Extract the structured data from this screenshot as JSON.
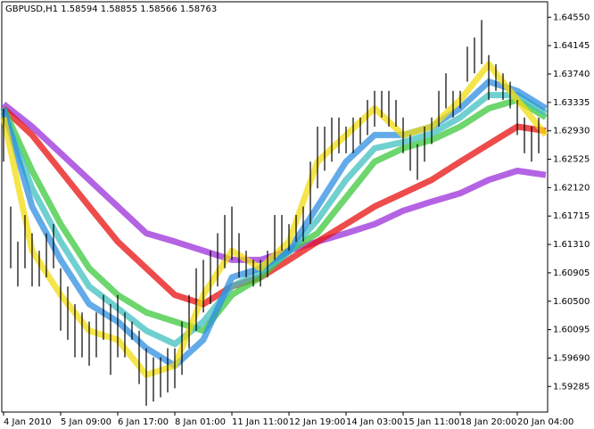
{
  "chart_data": {
    "type": "ohlc",
    "title": "GBPUSD,H1  1.58594 1.58855 1.58566 1.58763",
    "x_labels": [
      "4 Jan 2010",
      "5 Jan 09:00",
      "6 Jan 17:00",
      "8 Jan 01:00",
      "11 Jan 11:00",
      "12 Jan 19:00",
      "14 Jan 03:00",
      "15 Jan 11:00",
      "18 Jan 20:00",
      "20 Jan 04:00"
    ],
    "ylim": [
      1.5892,
      1.6477
    ],
    "yticks": [
      {
        "value": 1.6455,
        "label": "1.64550"
      },
      {
        "value": 1.64145,
        "label": "1.64145"
      },
      {
        "value": 1.6374,
        "label": "1.63740"
      },
      {
        "value": 1.63335,
        "label": "1.63335"
      },
      {
        "value": 1.6293,
        "label": "1.62930"
      },
      {
        "value": 1.62525,
        "label": "1.62525"
      },
      {
        "value": 1.6212,
        "label": "1.62120"
      },
      {
        "value": 1.61715,
        "label": "1.61715"
      },
      {
        "value": 1.6131,
        "label": "1.61310"
      },
      {
        "value": 1.60905,
        "label": "1.60905"
      },
      {
        "value": 1.605,
        "label": "1.60500"
      },
      {
        "value": 1.60095,
        "label": "1.60095"
      },
      {
        "value": 1.5969,
        "label": "1.59690"
      },
      {
        "value": 1.59285,
        "label": "1.59285"
      }
    ],
    "bar_color": "#000000",
    "high": [
      1.6325,
      1.6185,
      1.6135,
      1.6173,
      1.6147,
      1.6122,
      1.6147,
      1.616,
      1.6097,
      1.6071,
      1.6046,
      1.6034,
      1.6021,
      1.6034,
      1.6059,
      1.6046,
      1.6059,
      1.6034,
      1.6021,
      1.6008,
      1.5983,
      1.597,
      1.597,
      1.5983,
      1.5983,
      1.6021,
      1.6059,
      1.6097,
      1.6109,
      1.6122,
      1.6147,
      1.6173,
      1.6185,
      1.6147,
      1.6122,
      1.6109,
      1.6109,
      1.6122,
      1.6173,
      1.6173,
      1.616,
      1.6173,
      1.6185,
      1.6249,
      1.6299,
      1.6299,
      1.6312,
      1.6312,
      1.6299,
      1.6312,
      1.6312,
      1.6337,
      1.635,
      1.635,
      1.635,
      1.6337,
      1.6312,
      1.6287,
      1.6274,
      1.6299,
      1.6312,
      1.635,
      1.6375,
      1.635,
      1.635,
      1.6413,
      1.6426,
      1.6451,
      1.6401,
      1.6388,
      1.6375,
      1.6363,
      1.6337,
      1.6312,
      1.6299,
      1.6312
    ],
    "low": [
      1.6249,
      1.6097,
      1.6071,
      1.6097,
      1.6071,
      1.6071,
      1.6084,
      1.6097,
      1.6008,
      1.5995,
      1.597,
      1.597,
      1.5958,
      1.597,
      1.5995,
      1.5945,
      1.597,
      1.597,
      1.5995,
      1.5932,
      1.5901,
      1.5907,
      1.5913,
      1.592,
      1.5926,
      1.5945,
      1.5983,
      1.6008,
      1.6034,
      1.6046,
      1.6071,
      1.6097,
      1.6109,
      1.6084,
      1.6084,
      1.6071,
      1.6071,
      1.6084,
      1.6109,
      1.6122,
      1.6122,
      1.6135,
      1.6135,
      1.616,
      1.6211,
      1.6236,
      1.6249,
      1.6261,
      1.6261,
      1.6261,
      1.6274,
      1.6287,
      1.6299,
      1.6312,
      1.6299,
      1.6299,
      1.6261,
      1.6236,
      1.6223,
      1.6249,
      1.6274,
      1.6299,
      1.6325,
      1.6312,
      1.6325,
      1.6363,
      1.6375,
      1.6388,
      1.6337,
      1.635,
      1.6337,
      1.6325,
      1.6287,
      1.6261,
      1.6249,
      1.6261
    ],
    "lines": [
      {
        "color": "#9b30d9",
        "values": [
          1.6331,
          1.6299,
          1.6261,
          1.6223,
          1.6185,
          1.6147,
          1.6135,
          1.6122,
          1.6109,
          1.6109,
          1.6122,
          1.6135,
          1.6147,
          1.616,
          1.6179,
          1.6192,
          1.6204,
          1.6223,
          1.6236,
          1.623
        ]
      },
      {
        "color": "#e81010",
        "values": [
          1.6325,
          1.6287,
          1.6236,
          1.6185,
          1.6135,
          1.6097,
          1.6059,
          1.6046,
          1.6071,
          1.6084,
          1.6109,
          1.6135,
          1.616,
          1.6185,
          1.6204,
          1.6223,
          1.6249,
          1.6274,
          1.6299,
          1.6293
        ]
      },
      {
        "color": "#3cc83c",
        "values": [
          1.6325,
          1.6236,
          1.616,
          1.6097,
          1.6059,
          1.6034,
          1.6021,
          1.6008,
          1.6059,
          1.6084,
          1.6122,
          1.6147,
          1.6198,
          1.6249,
          1.6268,
          1.628,
          1.6299,
          1.6325,
          1.6337,
          1.6312
        ]
      },
      {
        "color": "#40c0c0",
        "values": [
          1.6318,
          1.6211,
          1.6135,
          1.6071,
          1.604,
          1.6008,
          1.5989,
          1.6021,
          1.6071,
          1.6091,
          1.612,
          1.6166,
          1.6223,
          1.6268,
          1.6277,
          1.6289,
          1.6312,
          1.6344,
          1.6344,
          1.6318
        ]
      },
      {
        "color": "#2f8fe0",
        "values": [
          1.6325,
          1.6185,
          1.6109,
          1.6046,
          1.6021,
          1.5983,
          1.5958,
          1.5995,
          1.6084,
          1.6097,
          1.6122,
          1.6185,
          1.6249,
          1.6287,
          1.6287,
          1.6299,
          1.6325,
          1.6363,
          1.635,
          1.6325
        ]
      },
      {
        "color": "#f2dc10",
        "values": [
          1.6312,
          1.6122,
          1.6059,
          1.6008,
          1.5995,
          1.5945,
          1.5958,
          1.6059,
          1.6122,
          1.6097,
          1.6135,
          1.6249,
          1.6287,
          1.6325,
          1.6287,
          1.6299,
          1.6337,
          1.6388,
          1.6337,
          1.6287
        ]
      }
    ]
  }
}
